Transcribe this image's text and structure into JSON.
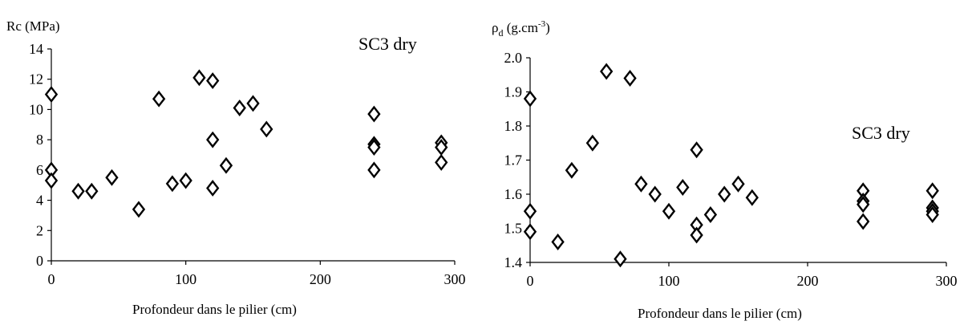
{
  "chart_data": [
    {
      "type": "scatter",
      "title": "",
      "annotation": "SC3 dry",
      "xlabel": "Profondeur dans le pilier (cm)",
      "ylabel": "Rc  (MPa)",
      "xlim": [
        0,
        300
      ],
      "ylim": [
        0,
        14
      ],
      "xticks": [
        "0",
        "100",
        "200",
        "300"
      ],
      "yticks": [
        "0",
        "2",
        "4",
        "6",
        "8",
        "10",
        "12",
        "14"
      ],
      "grid": false,
      "marker": "diamond-open",
      "points": [
        {
          "x": 0,
          "y": 11.0
        },
        {
          "x": 0,
          "y": 6.0
        },
        {
          "x": 0,
          "y": 5.3
        },
        {
          "x": 20,
          "y": 4.6
        },
        {
          "x": 30,
          "y": 4.6
        },
        {
          "x": 45,
          "y": 5.5
        },
        {
          "x": 65,
          "y": 3.4
        },
        {
          "x": 80,
          "y": 10.7
        },
        {
          "x": 90,
          "y": 5.1
        },
        {
          "x": 100,
          "y": 5.3
        },
        {
          "x": 110,
          "y": 12.1
        },
        {
          "x": 120,
          "y": 11.9
        },
        {
          "x": 120,
          "y": 8.0
        },
        {
          "x": 120,
          "y": 4.8
        },
        {
          "x": 130,
          "y": 6.3
        },
        {
          "x": 140,
          "y": 10.1
        },
        {
          "x": 150,
          "y": 10.4
        },
        {
          "x": 160,
          "y": 8.7
        },
        {
          "x": 240,
          "y": 9.7
        },
        {
          "x": 240,
          "y": 7.7
        },
        {
          "x": 240,
          "y": 7.5
        },
        {
          "x": 240,
          "y": 6.0
        },
        {
          "x": 290,
          "y": 7.8
        },
        {
          "x": 290,
          "y": 7.5
        },
        {
          "x": 290,
          "y": 6.5
        }
      ]
    },
    {
      "type": "scatter",
      "title": "",
      "annotation": "SC3 dry",
      "xlabel": "Profondeur dans le pilier (cm)",
      "ylabel_symbol": "ρ",
      "ylabel_subscript": "d",
      "ylabel_unit": " (g.cm",
      "ylabel_sup": "-3",
      "ylabel_close": ")",
      "xlim": [
        0,
        300
      ],
      "ylim": [
        1.4,
        2.0
      ],
      "xticks": [
        "0",
        "100",
        "200",
        "300"
      ],
      "yticks": [
        "1.4",
        "1.5",
        "1.6",
        "1.7",
        "1.8",
        "1.9",
        "2.0"
      ],
      "grid": false,
      "marker": "diamond-open",
      "points": [
        {
          "x": 0,
          "y": 1.88
        },
        {
          "x": 0,
          "y": 1.55
        },
        {
          "x": 0,
          "y": 1.49
        },
        {
          "x": 20,
          "y": 1.46
        },
        {
          "x": 30,
          "y": 1.67
        },
        {
          "x": 45,
          "y": 1.75
        },
        {
          "x": 55,
          "y": 1.96
        },
        {
          "x": 65,
          "y": 1.41
        },
        {
          "x": 72,
          "y": 1.94
        },
        {
          "x": 80,
          "y": 1.63
        },
        {
          "x": 90,
          "y": 1.6
        },
        {
          "x": 100,
          "y": 1.55
        },
        {
          "x": 110,
          "y": 1.62
        },
        {
          "x": 120,
          "y": 1.73
        },
        {
          "x": 120,
          "y": 1.51
        },
        {
          "x": 120,
          "y": 1.48
        },
        {
          "x": 130,
          "y": 1.54
        },
        {
          "x": 140,
          "y": 1.6
        },
        {
          "x": 150,
          "y": 1.63
        },
        {
          "x": 160,
          "y": 1.59
        },
        {
          "x": 240,
          "y": 1.61
        },
        {
          "x": 240,
          "y": 1.58
        },
        {
          "x": 240,
          "y": 1.57
        },
        {
          "x": 240,
          "y": 1.52
        },
        {
          "x": 290,
          "y": 1.61
        },
        {
          "x": 290,
          "y": 1.56
        },
        {
          "x": 290,
          "y": 1.55
        },
        {
          "x": 290,
          "y": 1.54
        }
      ]
    }
  ]
}
